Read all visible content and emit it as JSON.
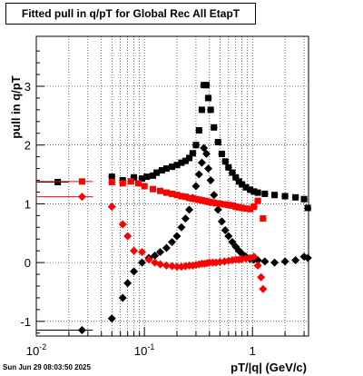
{
  "chart_data": {
    "type": "scatter",
    "title": "Fitted pull in q/pT for Global Rec All EtapT",
    "xlabel": "pT/|q| (GeV/c)",
    "ylabel": "pull in q/pT",
    "xscale": "log",
    "xlim": [
      0.01,
      3.3
    ],
    "ylim": [
      -1.25,
      3.85
    ],
    "grid": true,
    "x_tick_labels": [
      "10^-2",
      "10^-1",
      "1"
    ],
    "y_tick_labels": [
      "-1",
      "0",
      "1",
      "2",
      "3"
    ],
    "series": [
      {
        "color": "#000000",
        "marker": "square",
        "points": [
          [
            0.0158,
            1.37
          ],
          [
            0.05,
            1.46
          ],
          [
            0.063,
            1.4
          ],
          [
            0.08,
            1.45
          ],
          [
            0.095,
            1.43
          ],
          [
            0.105,
            1.46
          ],
          [
            0.12,
            1.48
          ],
          [
            0.13,
            1.53
          ],
          [
            0.145,
            1.57
          ],
          [
            0.16,
            1.6
          ],
          [
            0.18,
            1.63
          ],
          [
            0.2,
            1.66
          ],
          [
            0.22,
            1.7
          ],
          [
            0.24,
            1.73
          ],
          [
            0.26,
            1.78
          ],
          [
            0.28,
            1.86
          ],
          [
            0.3,
            2.0
          ],
          [
            0.32,
            2.25
          ],
          [
            0.34,
            2.6
          ],
          [
            0.355,
            3.02
          ],
          [
            0.375,
            3.02
          ],
          [
            0.39,
            2.8
          ],
          [
            0.41,
            2.6
          ],
          [
            0.44,
            2.3
          ],
          [
            0.48,
            2.05
          ],
          [
            0.52,
            1.85
          ],
          [
            0.56,
            1.72
          ],
          [
            0.6,
            1.62
          ],
          [
            0.65,
            1.53
          ],
          [
            0.7,
            1.45
          ],
          [
            0.75,
            1.38
          ],
          [
            0.8,
            1.33
          ],
          [
            0.87,
            1.28
          ],
          [
            0.95,
            1.24
          ],
          [
            1.03,
            1.21
          ],
          [
            1.12,
            1.19
          ],
          [
            1.3,
            1.17
          ],
          [
            1.6,
            1.15
          ],
          [
            2.0,
            1.13
          ],
          [
            2.5,
            1.11
          ],
          [
            3.0,
            1.08
          ],
          [
            3.25,
            0.93
          ]
        ]
      },
      {
        "color": "#000000",
        "marker": "diamond",
        "points": [
          [
            0.0265,
            -1.15
          ],
          [
            0.05,
            -0.95
          ],
          [
            0.063,
            -0.6
          ],
          [
            0.07,
            -0.35
          ],
          [
            0.08,
            -0.15
          ],
          [
            0.095,
            0.0
          ],
          [
            0.11,
            0.08
          ],
          [
            0.125,
            0.12
          ],
          [
            0.14,
            0.18
          ],
          [
            0.16,
            0.25
          ],
          [
            0.18,
            0.35
          ],
          [
            0.2,
            0.45
          ],
          [
            0.22,
            0.6
          ],
          [
            0.24,
            0.75
          ],
          [
            0.26,
            0.9
          ],
          [
            0.28,
            1.1
          ],
          [
            0.3,
            1.3
          ],
          [
            0.32,
            1.5
          ],
          [
            0.34,
            1.7
          ],
          [
            0.355,
            1.95
          ],
          [
            0.375,
            1.85
          ],
          [
            0.39,
            1.6
          ],
          [
            0.41,
            1.4
          ],
          [
            0.44,
            1.15
          ],
          [
            0.48,
            0.9
          ],
          [
            0.52,
            0.7
          ],
          [
            0.56,
            0.55
          ],
          [
            0.6,
            0.45
          ],
          [
            0.65,
            0.35
          ],
          [
            0.7,
            0.27
          ],
          [
            0.75,
            0.2
          ],
          [
            0.8,
            0.15
          ],
          [
            0.87,
            0.1
          ],
          [
            0.95,
            0.06
          ],
          [
            1.03,
            0.05
          ],
          [
            1.12,
            0.04
          ],
          [
            1.3,
            0.02
          ],
          [
            1.6,
            0.0
          ],
          [
            2.0,
            0.02
          ],
          [
            2.5,
            0.04
          ],
          [
            3.0,
            0.1
          ],
          [
            3.25,
            0.08
          ]
        ]
      },
      {
        "color": "#ff0000",
        "marker": "square",
        "points": [
          [
            0.0265,
            1.38
          ],
          [
            0.05,
            1.37
          ],
          [
            0.063,
            1.35
          ],
          [
            0.075,
            1.38
          ],
          [
            0.088,
            1.35
          ],
          [
            0.1,
            1.3
          ],
          [
            0.12,
            1.25
          ],
          [
            0.14,
            1.22
          ],
          [
            0.16,
            1.19
          ],
          [
            0.18,
            1.17
          ],
          [
            0.2,
            1.15
          ],
          [
            0.22,
            1.13
          ],
          [
            0.24,
            1.12
          ],
          [
            0.26,
            1.1
          ],
          [
            0.28,
            1.09
          ],
          [
            0.3,
            1.08
          ],
          [
            0.32,
            1.07
          ],
          [
            0.34,
            1.06
          ],
          [
            0.36,
            1.05
          ],
          [
            0.38,
            1.04
          ],
          [
            0.4,
            1.03
          ],
          [
            0.43,
            1.02
          ],
          [
            0.46,
            1.01
          ],
          [
            0.5,
            1.0
          ],
          [
            0.55,
            0.99
          ],
          [
            0.6,
            0.98
          ],
          [
            0.65,
            0.97
          ],
          [
            0.7,
            0.95
          ],
          [
            0.75,
            0.94
          ],
          [
            0.8,
            0.93
          ],
          [
            0.87,
            0.92
          ],
          [
            0.95,
            0.91
          ],
          [
            1.03,
            0.95
          ],
          [
            1.12,
            1.05
          ],
          [
            1.25,
            0.75
          ]
        ]
      },
      {
        "color": "#ff0000",
        "marker": "diamond",
        "points": [
          [
            0.0265,
            1.12
          ],
          [
            0.05,
            0.95
          ],
          [
            0.063,
            0.65
          ],
          [
            0.07,
            0.45
          ],
          [
            0.08,
            0.2
          ],
          [
            0.095,
            0.18
          ],
          [
            0.11,
            0.05
          ],
          [
            0.125,
            0.0
          ],
          [
            0.14,
            -0.03
          ],
          [
            0.16,
            -0.05
          ],
          [
            0.18,
            -0.06
          ],
          [
            0.2,
            -0.07
          ],
          [
            0.22,
            -0.07
          ],
          [
            0.24,
            -0.06
          ],
          [
            0.26,
            -0.05
          ],
          [
            0.28,
            -0.05
          ],
          [
            0.3,
            -0.04
          ],
          [
            0.32,
            -0.03
          ],
          [
            0.34,
            -0.02
          ],
          [
            0.36,
            -0.02
          ],
          [
            0.38,
            -0.01
          ],
          [
            0.4,
            0.0
          ],
          [
            0.43,
            0.0
          ],
          [
            0.46,
            0.0
          ],
          [
            0.5,
            0.01
          ],
          [
            0.55,
            0.02
          ],
          [
            0.6,
            0.03
          ],
          [
            0.65,
            0.04
          ],
          [
            0.7,
            0.05
          ],
          [
            0.75,
            0.05
          ],
          [
            0.8,
            0.06
          ],
          [
            0.87,
            0.07
          ],
          [
            0.95,
            0.08
          ],
          [
            1.03,
            0.1
          ],
          [
            1.12,
            -0.05
          ],
          [
            1.2,
            -0.25
          ],
          [
            1.25,
            -0.45
          ]
        ]
      }
    ]
  },
  "timestamp": "Sun Jun 29 08:03:50 2025"
}
